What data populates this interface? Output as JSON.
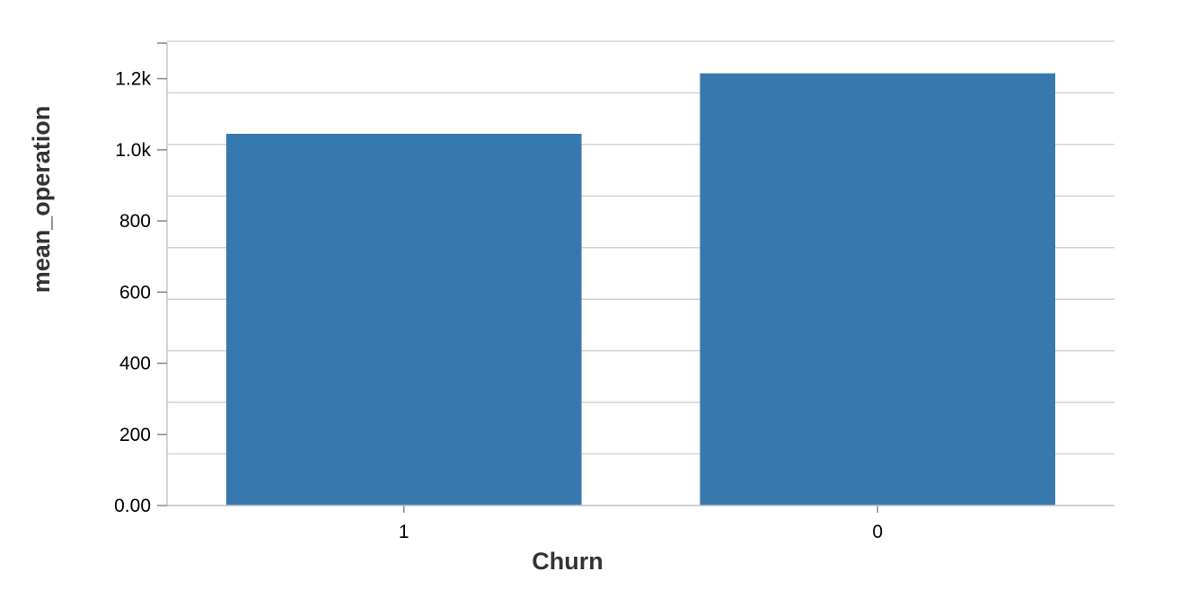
{
  "chart_data": {
    "type": "bar",
    "xlabel": "Churn",
    "ylabel": "mean_operation",
    "categories": [
      "1",
      "0"
    ],
    "values": [
      1045,
      1215
    ],
    "ylim": [
      0,
      1300
    ],
    "y_ticks": [
      {
        "value": 0,
        "label": "0.00"
      },
      {
        "value": 200,
        "label": "200"
      },
      {
        "value": 400,
        "label": "400"
      },
      {
        "value": 600,
        "label": "600"
      },
      {
        "value": 800,
        "label": "800"
      },
      {
        "value": 1000,
        "label": "1.0k"
      },
      {
        "value": 1200,
        "label": "1.2k"
      }
    ],
    "grid_values": [
      0,
      145,
      290,
      435,
      580,
      725,
      870,
      1015,
      1160,
      1305
    ],
    "bar_color": "#3778af",
    "grid": true,
    "legend": "none"
  }
}
